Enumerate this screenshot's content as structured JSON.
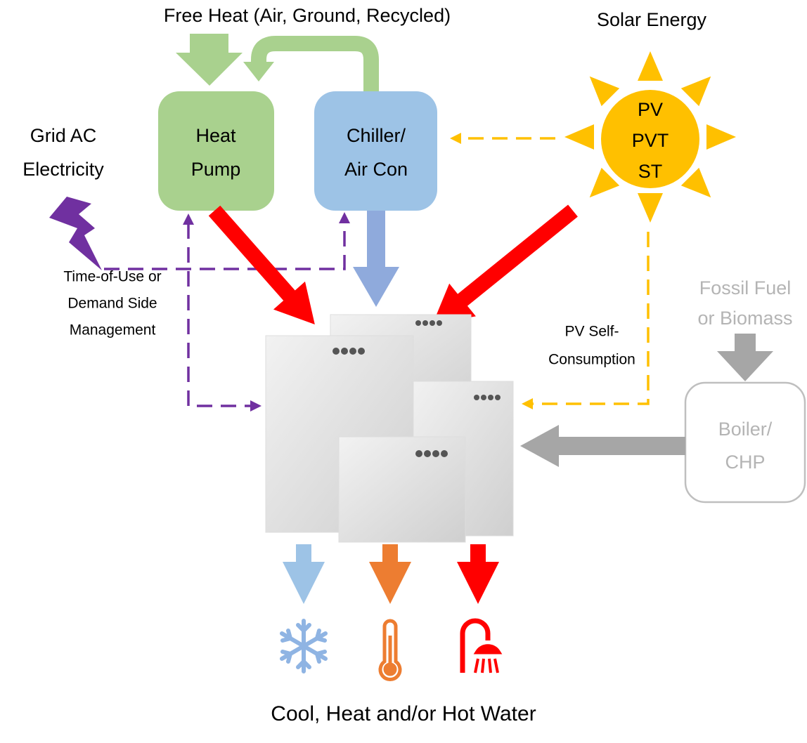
{
  "labels": {
    "free_heat": "Free Heat (Air, Ground, Recycled)",
    "solar_energy": "Solar Energy",
    "grid": [
      "Grid AC",
      "Electricity"
    ],
    "tou": [
      "Time-of-Use or",
      "Demand Side",
      "Management"
    ],
    "fossil": [
      "Fossil Fuel",
      "or Biomass"
    ],
    "pv_self": [
      "PV Self-",
      "Consumption"
    ],
    "output": "Cool, Heat and/or Hot Water"
  },
  "nodes": [
    {
      "label": [
        "Heat",
        "Pump"
      ]
    },
    {
      "label": [
        "Chiller/",
        "Air Con"
      ]
    },
    {
      "label": [
        "PV",
        "PVT",
        "ST"
      ]
    },
    {
      "label": [
        "Boiler/",
        "CHP"
      ]
    }
  ]
}
